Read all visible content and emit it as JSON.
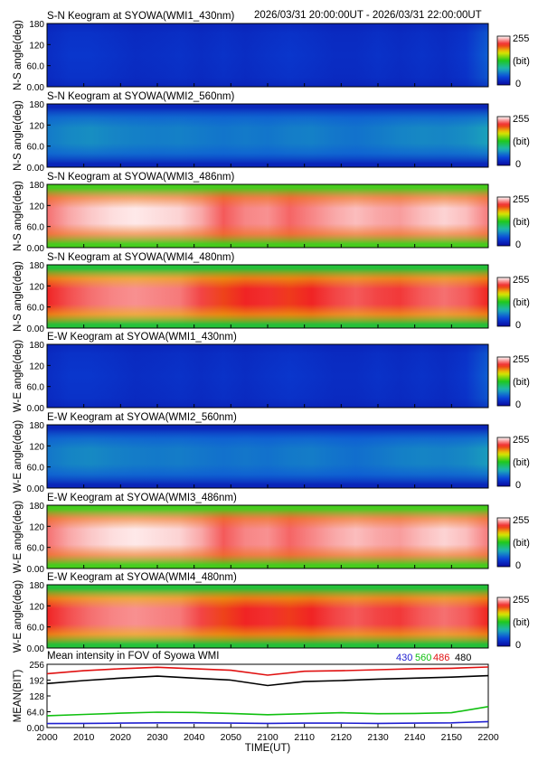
{
  "header": {
    "period": "2026/03/31 20:00:00UT - 2026/03/31 22:00:00UT"
  },
  "colorbar": {
    "max_label": "255",
    "unit_label": "(bit)",
    "min_label": "0",
    "colormap": [
      "#0a0aa0",
      "#0a46dc",
      "#1eb4b4",
      "#1ec81e",
      "#e6e600",
      "#f02020",
      "#ffffff"
    ]
  },
  "chart_data": [
    {
      "type": "heatmap",
      "id": "sn-430",
      "title": "S-N Keogram at SYOWA(WMI1_430nm)",
      "ylabel": "N-S angle(deg)",
      "yticks": [
        "0.00",
        "60.0",
        "120",
        "180"
      ],
      "ylim": [
        0,
        180
      ],
      "xlim": [
        2000,
        2200
      ],
      "zlim": [
        0,
        255
      ],
      "profile": "flat",
      "center_intensity": 25,
      "edge_intensity": 20,
      "intensity_trend": [
        0.0,
        0.1,
        0.1,
        0.05,
        0.0,
        0.02,
        0.05,
        0.0,
        0.05,
        0.0,
        0.05,
        0.1,
        0.05,
        0.0,
        0.0,
        0.05,
        0.0,
        0.05,
        0.0,
        0.1,
        0.45
      ]
    },
    {
      "type": "heatmap",
      "id": "sn-560",
      "title": "S-N Keogram at SYOWA(WMI2_560nm)",
      "ylabel": "N-S angle(deg)",
      "yticks": [
        "0.00",
        "60.0",
        "120",
        "180"
      ],
      "ylim": [
        0,
        180
      ],
      "xlim": [
        2000,
        2200
      ],
      "zlim": [
        0,
        255
      ],
      "profile": "dome",
      "center_intensity": 80,
      "edge_intensity": 18,
      "intensity_trend": [
        0.2,
        0.45,
        0.55,
        0.4,
        0.3,
        0.25,
        0.3,
        0.2,
        0.1,
        0.2,
        0.1,
        0.25,
        0.3,
        0.15,
        0.05,
        0.2,
        0.35,
        0.45,
        0.4,
        0.55,
        0.9
      ]
    },
    {
      "type": "heatmap",
      "id": "sn-486",
      "title": "S-N Keogram at SYOWA(WMI3_486nm)",
      "ylabel": "N-S angle(deg)",
      "yticks": [
        "0.00",
        "60.0",
        "120",
        "180"
      ],
      "ylim": [
        0,
        180
      ],
      "xlim": [
        2000,
        2200
      ],
      "zlim": [
        0,
        255
      ],
      "profile": "dome",
      "center_intensity": 255,
      "edge_intensity": 135,
      "intensity_trend": [
        0.35,
        0.6,
        0.75,
        0.85,
        0.9,
        0.85,
        0.8,
        0.6,
        0.25,
        0.45,
        0.5,
        0.3,
        0.45,
        0.6,
        0.7,
        0.6,
        0.55,
        0.7,
        0.8,
        0.7,
        0.4
      ]
    },
    {
      "type": "heatmap",
      "id": "sn-480",
      "title": "S-N Keogram at SYOWA(WMI4_480nm)",
      "ylabel": "N-S angle(deg)",
      "yticks": [
        "0.00",
        "60.0",
        "120",
        "180"
      ],
      "ylim": [
        0,
        180
      ],
      "xlim": [
        2000,
        2200
      ],
      "zlim": [
        0,
        255
      ],
      "profile": "dome",
      "center_intensity": 238,
      "edge_intensity": 120,
      "intensity_trend": [
        0.4,
        0.6,
        0.75,
        0.85,
        0.9,
        0.85,
        0.8,
        0.55,
        0.2,
        0.4,
        0.45,
        0.25,
        0.4,
        0.55,
        0.65,
        0.55,
        0.5,
        0.65,
        0.75,
        0.65,
        0.35
      ]
    },
    {
      "type": "heatmap",
      "id": "ew-430",
      "title": "E-W Keogram at SYOWA(WMI1_430nm)",
      "ylabel": "W-E angle(deg)",
      "yticks": [
        "0.00",
        "60.0",
        "120",
        "180"
      ],
      "ylim": [
        0,
        180
      ],
      "xlim": [
        2000,
        2200
      ],
      "zlim": [
        0,
        255
      ],
      "profile": "flat",
      "center_intensity": 25,
      "edge_intensity": 20,
      "intensity_trend": [
        0.0,
        0.1,
        0.1,
        0.05,
        0.0,
        0.02,
        0.05,
        0.0,
        0.05,
        0.0,
        0.05,
        0.1,
        0.05,
        0.0,
        0.0,
        0.05,
        0.0,
        0.05,
        0.0,
        0.1,
        0.45
      ]
    },
    {
      "type": "heatmap",
      "id": "ew-560",
      "title": "E-W Keogram at SYOWA(WMI2_560nm)",
      "ylabel": "W-E angle(deg)",
      "yticks": [
        "0.00",
        "60.0",
        "120",
        "180"
      ],
      "ylim": [
        0,
        180
      ],
      "xlim": [
        2000,
        2200
      ],
      "zlim": [
        0,
        255
      ],
      "profile": "dome",
      "center_intensity": 78,
      "edge_intensity": 18,
      "intensity_trend": [
        0.2,
        0.45,
        0.55,
        0.4,
        0.3,
        0.25,
        0.3,
        0.2,
        0.1,
        0.2,
        0.1,
        0.25,
        0.3,
        0.15,
        0.05,
        0.2,
        0.35,
        0.45,
        0.4,
        0.55,
        0.9
      ]
    },
    {
      "type": "heatmap",
      "id": "ew-486",
      "title": "E-W Keogram at SYOWA(WMI3_486nm)",
      "ylabel": "W-E angle(deg)",
      "yticks": [
        "0.00",
        "60.0",
        "120",
        "180"
      ],
      "ylim": [
        0,
        180
      ],
      "xlim": [
        2000,
        2200
      ],
      "zlim": [
        0,
        255
      ],
      "profile": "dome",
      "center_intensity": 255,
      "edge_intensity": 135,
      "intensity_trend": [
        0.35,
        0.6,
        0.75,
        0.85,
        0.9,
        0.85,
        0.8,
        0.6,
        0.25,
        0.45,
        0.5,
        0.3,
        0.45,
        0.6,
        0.7,
        0.6,
        0.55,
        0.7,
        0.8,
        0.7,
        0.4
      ]
    },
    {
      "type": "heatmap",
      "id": "ew-480",
      "title": "E-W Keogram at SYOWA(WMI4_480nm)",
      "ylabel": "W-E angle(deg)",
      "yticks": [
        "0.00",
        "60.0",
        "120",
        "180"
      ],
      "ylim": [
        0,
        180
      ],
      "xlim": [
        2000,
        2200
      ],
      "zlim": [
        0,
        255
      ],
      "profile": "dome",
      "center_intensity": 238,
      "edge_intensity": 120,
      "intensity_trend": [
        0.4,
        0.6,
        0.75,
        0.85,
        0.9,
        0.85,
        0.8,
        0.55,
        0.2,
        0.4,
        0.45,
        0.25,
        0.4,
        0.55,
        0.65,
        0.55,
        0.5,
        0.65,
        0.75,
        0.65,
        0.35
      ]
    },
    {
      "type": "line",
      "id": "mean",
      "title": "Mean intensity in FOV of Syowa WMI",
      "xlabel": "TIME(UT)",
      "ylabel": "MEAN(BIT)",
      "yticks": [
        "0.00",
        "64.0",
        "128",
        "192",
        "256"
      ],
      "ylim": [
        0,
        256
      ],
      "xlim": [
        2000,
        2200
      ],
      "xticks": [
        "2000",
        "2010",
        "2020",
        "2030",
        "2040",
        "2050",
        "2100",
        "2110",
        "2120",
        "2130",
        "2140",
        "2150",
        "2200"
      ],
      "x": [
        2000,
        2010,
        2020,
        2030,
        2040,
        2050,
        2100,
        2110,
        2120,
        2130,
        2140,
        2150,
        2200
      ],
      "series": [
        {
          "name": "430",
          "color": "#2020d0",
          "values": [
            16,
            17,
            18,
            19,
            19,
            18,
            17,
            18,
            18,
            17,
            18,
            19,
            24
          ]
        },
        {
          "name": "560",
          "color": "#10c010",
          "values": [
            48,
            53,
            58,
            62,
            61,
            57,
            52,
            56,
            60,
            56,
            57,
            60,
            85
          ]
        },
        {
          "name": "486",
          "color": "#e01010",
          "values": [
            218,
            230,
            238,
            244,
            238,
            232,
            212,
            228,
            230,
            234,
            238,
            240,
            245
          ]
        },
        {
          "name": "480",
          "color": "#000000",
          "values": [
            178,
            190,
            200,
            208,
            200,
            192,
            170,
            186,
            190,
            196,
            200,
            204,
            210
          ]
        }
      ]
    }
  ]
}
